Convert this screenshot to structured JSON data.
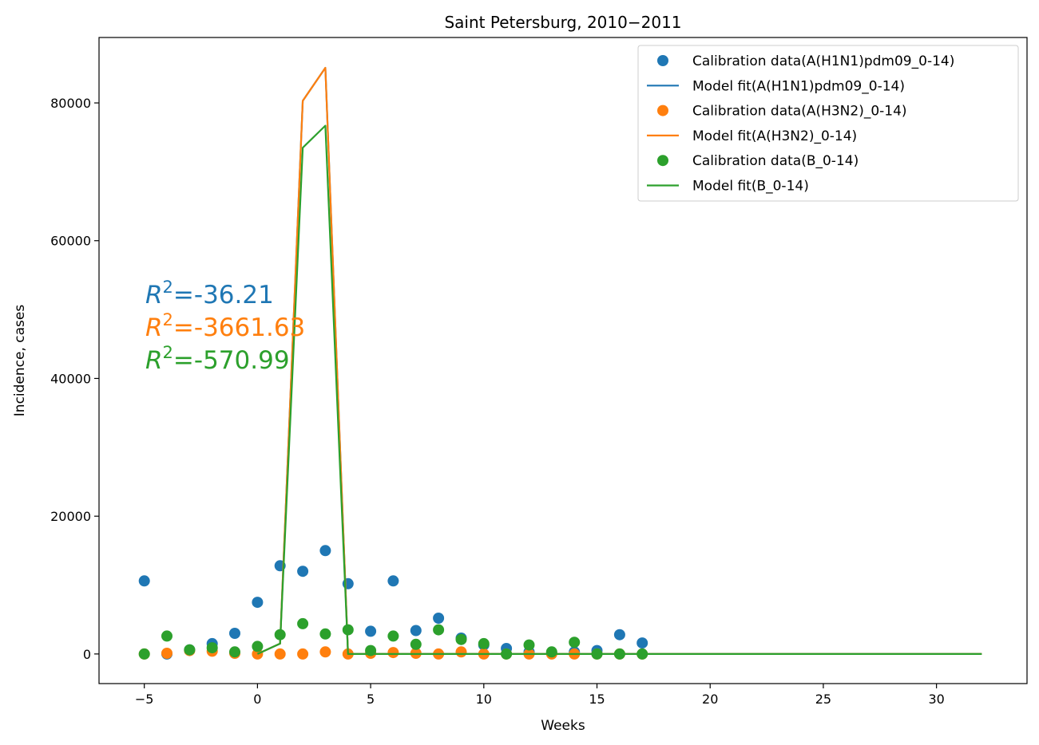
{
  "chart_data": {
    "type": "scatter",
    "title": "Saint Petersburg, 2010−2011",
    "xlabel": "Weeks",
    "ylabel": "Incidence, cases",
    "xlim": [
      -7,
      34
    ],
    "ylim": [
      -4300,
      89500
    ],
    "xticks": [
      -5,
      0,
      5,
      10,
      15,
      20,
      25,
      30
    ],
    "yticks": [
      0,
      20000,
      40000,
      60000,
      80000
    ],
    "xtick_labels": [
      "−5",
      "0",
      "5",
      "10",
      "15",
      "20",
      "25",
      "30"
    ],
    "ytick_labels": [
      "0",
      "20000",
      "40000",
      "60000",
      "80000"
    ],
    "grid": false,
    "legend_position": "top-right",
    "model_x": [
      0,
      1,
      2,
      3,
      4,
      5,
      6,
      7,
      8,
      9,
      10,
      11,
      12,
      13,
      14,
      15,
      16,
      17,
      18,
      19,
      20,
      21,
      22,
      23,
      24,
      25,
      26,
      27,
      28,
      29,
      30,
      31,
      32
    ],
    "series": [
      {
        "name": "Calibration data(A(H1N1)pdm09_0-14)",
        "kind": "scatter",
        "color": "#1f77b4",
        "x": [
          -5,
          -4,
          -3,
          -2,
          -1,
          0,
          1,
          2,
          3,
          4,
          5,
          6,
          7,
          8,
          9,
          10,
          11,
          12,
          13,
          14,
          15,
          16,
          17
        ],
        "y": [
          10600,
          0,
          600,
          1500,
          3000,
          7500,
          12800,
          12000,
          15000,
          10200,
          3300,
          10600,
          3400,
          5200,
          2300,
          1300,
          800,
          300,
          100,
          300,
          500,
          2800,
          1600
        ]
      },
      {
        "name": "Model fit(A(H1N1)pdm09_0-14)",
        "kind": "line",
        "color": "#1f77b4",
        "y": [
          0,
          1500,
          80300,
          85100,
          0,
          0,
          0,
          0,
          0,
          0,
          0,
          0,
          0,
          0,
          0,
          0,
          0,
          0,
          0,
          0,
          0,
          0,
          0,
          0,
          0,
          0,
          0,
          0,
          0,
          0,
          0,
          0,
          0
        ]
      },
      {
        "name": "Calibration data(A(H3N2)_0-14)",
        "kind": "scatter",
        "color": "#ff7f0e",
        "x": [
          -5,
          -4,
          -3,
          -2,
          -1,
          0,
          1,
          2,
          3,
          4,
          5,
          6,
          7,
          8,
          9,
          10,
          11,
          12,
          13,
          14,
          15,
          16,
          17
        ],
        "y": [
          0,
          100,
          500,
          400,
          100,
          0,
          0,
          0,
          300,
          0,
          100,
          200,
          100,
          0,
          300,
          0,
          0,
          0,
          0,
          0,
          0,
          0,
          0
        ]
      },
      {
        "name": "Model fit(A(H3N2)_0-14)",
        "kind": "line",
        "color": "#ff7f0e",
        "y": [
          0,
          1500,
          80300,
          85100,
          0,
          0,
          0,
          0,
          0,
          0,
          0,
          0,
          0,
          0,
          0,
          0,
          0,
          0,
          0,
          0,
          0,
          0,
          0,
          0,
          0,
          0,
          0,
          0,
          0,
          0,
          0,
          0,
          0
        ]
      },
      {
        "name": "Calibration data(B_0-14)",
        "kind": "scatter",
        "color": "#2ca02c",
        "x": [
          -5,
          -4,
          -3,
          -2,
          -1,
          0,
          1,
          2,
          3,
          4,
          5,
          6,
          7,
          8,
          9,
          10,
          11,
          12,
          13,
          14,
          15,
          16,
          17
        ],
        "y": [
          0,
          2600,
          600,
          900,
          300,
          1100,
          2800,
          4400,
          2900,
          3500,
          500,
          2600,
          1400,
          3500,
          2100,
          1500,
          0,
          1300,
          300,
          1700,
          0,
          0,
          0
        ]
      },
      {
        "name": "Model fit(B_0-14)",
        "kind": "line",
        "color": "#2ca02c",
        "y": [
          0,
          1500,
          73500,
          76700,
          0,
          0,
          0,
          0,
          0,
          0,
          0,
          0,
          0,
          0,
          0,
          0,
          0,
          0,
          0,
          0,
          0,
          0,
          0,
          0,
          0,
          0,
          0,
          0,
          0,
          0,
          0,
          0,
          0
        ]
      }
    ],
    "annotations": [
      {
        "label": "R",
        "sup": "2",
        "value": "=-36.21",
        "color": "#1f77b4"
      },
      {
        "label": "R",
        "sup": "2",
        "value": "=-3661.63",
        "color": "#ff7f0e"
      },
      {
        "label": "R",
        "sup": "2",
        "value": "=-570.99",
        "color": "#2ca02c"
      }
    ]
  }
}
